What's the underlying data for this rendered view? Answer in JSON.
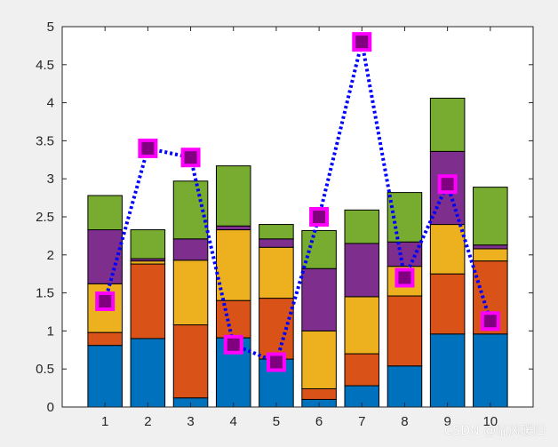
{
  "chart_data": {
    "type": "bar",
    "stacked": true,
    "categories": [
      "1",
      "2",
      "3",
      "4",
      "5",
      "6",
      "7",
      "8",
      "9",
      "10"
    ],
    "series": [
      {
        "values": [
          0.81,
          0.9,
          0.12,
          0.91,
          0.63,
          0.1,
          0.28,
          0.54,
          0.96,
          0.96
        ],
        "color": "#0072bd"
      },
      {
        "values": [
          0.17,
          0.98,
          0.96,
          0.49,
          0.8,
          0.14,
          0.42,
          0.92,
          0.79,
          0.96
        ],
        "color": "#d95319"
      },
      {
        "values": [
          0.64,
          0.04,
          0.85,
          0.93,
          0.67,
          0.76,
          0.75,
          0.39,
          0.65,
          0.16
        ],
        "color": "#edb120"
      },
      {
        "values": [
          0.71,
          0.03,
          0.28,
          0.05,
          0.11,
          0.82,
          0.7,
          0.32,
          0.96,
          0.05
        ],
        "color": "#7e2f8e"
      },
      {
        "values": [
          0.45,
          0.38,
          0.76,
          0.79,
          0.19,
          0.5,
          0.44,
          0.65,
          0.7,
          0.76
        ],
        "color": "#77ac30"
      }
    ],
    "line": {
      "x": [
        1,
        2,
        3,
        4,
        5,
        6,
        7,
        8,
        9,
        10
      ],
      "y": [
        1.39,
        3.4,
        3.28,
        0.82,
        0.59,
        2.5,
        4.8,
        1.7,
        2.93,
        1.13
      ],
      "line_color": "#0000ff",
      "line_style": "dotted",
      "marker": "square",
      "marker_edge_color": "#ff00ff",
      "marker_face_color": "#800080"
    },
    "xlim": [
      0,
      11
    ],
    "ylim": [
      0,
      5
    ],
    "yticks": [
      "0",
      "0.5",
      "1",
      "1.5",
      "2",
      "2.5",
      "3",
      "3.5",
      "4",
      "4.5",
      "5"
    ],
    "grid": false,
    "title": "",
    "xlabel": "",
    "ylabel": ""
  },
  "watermark": "CSDN @临风暖阳"
}
